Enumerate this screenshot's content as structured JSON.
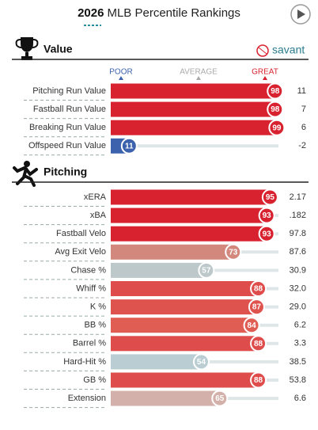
{
  "header": {
    "year": "2026",
    "title": "MLB Percentile Rankings"
  },
  "brand": "savant",
  "scale": {
    "poor": "POOR",
    "average": "AVERAGE",
    "great": "GREAT"
  },
  "sections": [
    {
      "title": "Value",
      "rows": [
        {
          "label": "Pitching Run Value",
          "percentile": 98,
          "stat": "11",
          "color": "#d8222f"
        },
        {
          "label": "Fastball Run Value",
          "percentile": 98,
          "stat": "7",
          "color": "#d8222f"
        },
        {
          "label": "Breaking Run Value",
          "percentile": 99,
          "stat": "6",
          "color": "#d8222f"
        },
        {
          "label": "Offspeed Run Value",
          "percentile": 11,
          "stat": "-2",
          "color": "#3d62ad"
        }
      ]
    },
    {
      "title": "Pitching",
      "rows": [
        {
          "label": "xERA",
          "percentile": 95,
          "stat": "2.17",
          "color": "#d8222f"
        },
        {
          "label": "xBA",
          "percentile": 93,
          "stat": ".182",
          "color": "#d8222f"
        },
        {
          "label": "Fastball Velo",
          "percentile": 93,
          "stat": "97.8",
          "color": "#d8222f"
        },
        {
          "label": "Avg Exit Velo",
          "percentile": 73,
          "stat": "87.6",
          "color": "#d2887d"
        },
        {
          "label": "Chase %",
          "percentile": 57,
          "stat": "30.9",
          "color": "#bcc8c9"
        },
        {
          "label": "Whiff %",
          "percentile": 88,
          "stat": "32.0",
          "color": "#de4d4b"
        },
        {
          "label": "K %",
          "percentile": 87,
          "stat": "29.0",
          "color": "#df534f"
        },
        {
          "label": "BB %",
          "percentile": 84,
          "stat": "6.2",
          "color": "#e05d54"
        },
        {
          "label": "Barrel %",
          "percentile": 88,
          "stat": "3.3",
          "color": "#de4d4b"
        },
        {
          "label": "Hard-Hit %",
          "percentile": 54,
          "stat": "38.5",
          "color": "#b9cdd2"
        },
        {
          "label": "GB %",
          "percentile": 88,
          "stat": "53.8",
          "color": "#de4d4b"
        },
        {
          "label": "Extension",
          "percentile": 65,
          "stat": "6.6",
          "color": "#d3b1aa"
        }
      ]
    }
  ]
}
